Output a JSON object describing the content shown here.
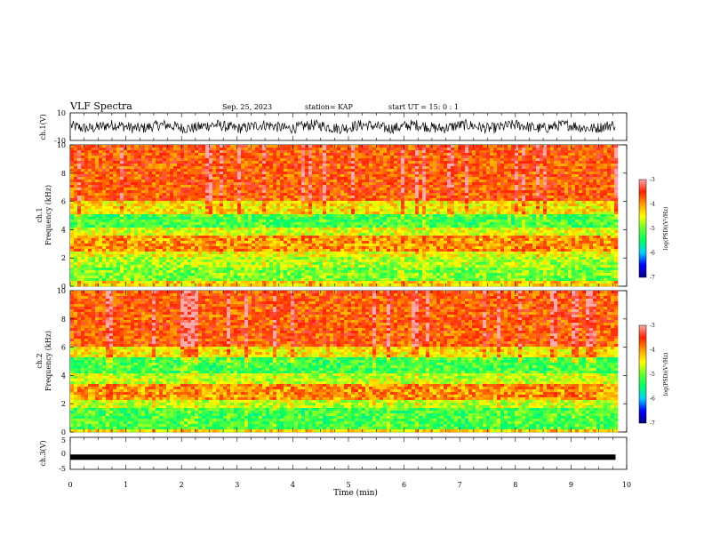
{
  "header": {
    "title": "VLF Spectra",
    "date": "Sep. 25, 2023",
    "station": "station= KAP",
    "start": "start UT = 15: 0 : 1"
  },
  "colors": {
    "colormap": [
      "#000080",
      "#0000ff",
      "#00ccff",
      "#00ff66",
      "#66ff33",
      "#ffff00",
      "#ff9900",
      "#ff2200",
      "#ffaaaa"
    ],
    "trace": "#000000"
  },
  "chart_data": [
    {
      "type": "line",
      "name": "ch1-waveform",
      "ylabel": "ch.1(V)",
      "ylim": [
        -10,
        10
      ],
      "yticks": [
        "10",
        "-10"
      ],
      "xlim": [
        0,
        10
      ],
      "description_values": {
        "mean": 0,
        "amplitude_approx": 4
      }
    },
    {
      "type": "heatmap",
      "name": "ch1-spectrogram",
      "ylabel": "ch.1\nFrequency (kHz)",
      "ylabel_line1": "ch.1",
      "ylabel_line2": "Frequency (kHz)",
      "ylim": [
        0,
        10
      ],
      "yticks": [
        "0",
        "2",
        "4",
        "6",
        "8",
        "10"
      ],
      "xlim": [
        0,
        9.8
      ],
      "colorbar": {
        "label": "log(PSD)(V²/Hz)",
        "range": [
          -7,
          -3
        ],
        "ticks": [
          "-3",
          "-4",
          "-5",
          "-6",
          "-7"
        ]
      },
      "bands_khz_logpsd": [
        [
          0,
          0.5,
          -4.3
        ],
        [
          0.5,
          1.5,
          -5.0
        ],
        [
          1.5,
          2.2,
          -4.8
        ],
        [
          2.2,
          2.6,
          -4.5
        ],
        [
          2.6,
          3.6,
          -4.0
        ],
        [
          3.6,
          4.2,
          -4.6
        ],
        [
          4.2,
          5.2,
          -5.2
        ],
        [
          5.2,
          6.2,
          -4.4
        ],
        [
          6.2,
          10,
          -3.7
        ]
      ]
    },
    {
      "type": "heatmap",
      "name": "ch2-spectrogram",
      "ylabel_line1": "ch.2",
      "ylabel_line2": "Frequency (kHz)",
      "ylim": [
        0,
        10
      ],
      "yticks": [
        "0",
        "2",
        "4",
        "6",
        "8",
        "10"
      ],
      "xlim": [
        0,
        9.8
      ],
      "colorbar": {
        "label": "log(PSD)(V²/Hz)",
        "range": [
          -7,
          -3
        ],
        "ticks": [
          "-3",
          "-4",
          "-5",
          "-6",
          "-7"
        ]
      },
      "bands_khz_logpsd": [
        [
          0,
          0.3,
          -4.4
        ],
        [
          0.3,
          1.8,
          -5.2
        ],
        [
          1.8,
          2.4,
          -4.7
        ],
        [
          2.4,
          3.4,
          -4.0
        ],
        [
          3.4,
          4.3,
          -4.7
        ],
        [
          4.3,
          5.3,
          -5.2
        ],
        [
          5.3,
          6.2,
          -4.4
        ],
        [
          6.2,
          10,
          -3.7
        ]
      ]
    },
    {
      "type": "line",
      "name": "ch3-waveform",
      "ylabel": "ch.3(V)",
      "ylim": [
        -5,
        5
      ],
      "yticks": [
        "5",
        "0",
        "-5"
      ],
      "xlim": [
        0,
        9.8
      ],
      "level": -1.2
    }
  ],
  "xaxis": {
    "label": "Time (min)",
    "ticks": [
      "0",
      "1",
      "2",
      "3",
      "4",
      "5",
      "6",
      "7",
      "8",
      "9",
      "10"
    ],
    "range": [
      0,
      10
    ]
  }
}
